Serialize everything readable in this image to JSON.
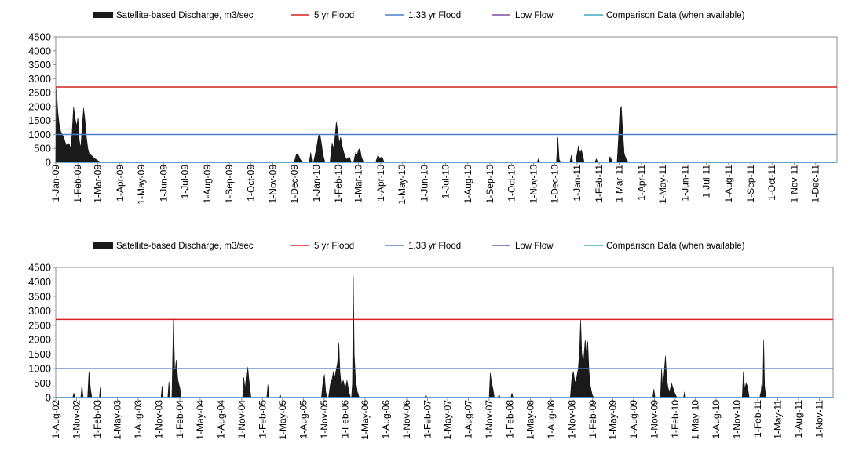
{
  "chart_data": [
    {
      "type": "area",
      "legend": {
        "placement": "top",
        "entries": [
          {
            "label": "Satellite-based Discharge, m3/sec",
            "color": "#1a1a1a",
            "kind": "area"
          },
          {
            "label": "5 yr Flood",
            "color": "#d42020",
            "kind": "line"
          },
          {
            "label": "1.33 yr Flood",
            "color": "#4a7ec9",
            "kind": "line"
          },
          {
            "label": "Low Flow",
            "color": "#7a4f9e",
            "kind": "line"
          },
          {
            "label": "Comparison Data (when available)",
            "color": "#3fa9c9",
            "kind": "line"
          }
        ]
      },
      "y_ticks": [
        "0",
        "500",
        "1000",
        "1500",
        "2000",
        "2500",
        "3000",
        "3500",
        "4000",
        "4500"
      ],
      "ylim": [
        0,
        4500
      ],
      "x_start": "2009-01-01",
      "x_end": "2011-12-31",
      "x_ticks": [
        "1-Jan-09",
        "1-Feb-09",
        "1-Mar-09",
        "1-Apr-09",
        "1-May-09",
        "1-Jun-09",
        "1-Jul-09",
        "1-Aug-09",
        "1-Sep-09",
        "1-Oct-09",
        "1-Nov-09",
        "1-Dec-09",
        "1-Jan-10",
        "1-Feb-10",
        "1-Mar-10",
        "1-Apr-10",
        "1-May-10",
        "1-Jun-10",
        "1-Jul-10",
        "1-Aug-10",
        "1-Sep-10",
        "1-Oct-10",
        "1-Nov-10",
        "1-Dec-10",
        "1-Jan-11",
        "1-Feb-11",
        "1-Mar-11",
        "1-Apr-11",
        "1-May-11",
        "1-Jun-11",
        "1-Jul-11",
        "1-Aug-11",
        "1-Sep-11",
        "1-Oct-11",
        "1-Nov-11",
        "1-Dec-11"
      ],
      "flood_5yr": 2700,
      "flood_133yr": 1000,
      "low_flow": 0,
      "comparison": 0,
      "discharge": [
        [
          "2009-01-01",
          0
        ],
        [
          "2009-01-02",
          2650
        ],
        [
          "2009-01-04",
          1800
        ],
        [
          "2009-01-06",
          1350
        ],
        [
          "2009-01-08",
          1100
        ],
        [
          "2009-01-10",
          1000
        ],
        [
          "2009-01-12",
          900
        ],
        [
          "2009-01-14",
          750
        ],
        [
          "2009-01-16",
          600
        ],
        [
          "2009-01-18",
          700
        ],
        [
          "2009-01-20",
          650
        ],
        [
          "2009-01-22",
          500
        ],
        [
          "2009-01-24",
          1100
        ],
        [
          "2009-01-26",
          2000
        ],
        [
          "2009-01-28",
          1600
        ],
        [
          "2009-01-30",
          1300
        ],
        [
          "2009-02-01",
          1600
        ],
        [
          "2009-02-03",
          800
        ],
        [
          "2009-02-05",
          500
        ],
        [
          "2009-02-07",
          1300
        ],
        [
          "2009-02-09",
          1950
        ],
        [
          "2009-02-11",
          1500
        ],
        [
          "2009-02-13",
          900
        ],
        [
          "2009-02-15",
          500
        ],
        [
          "2009-02-17",
          300
        ],
        [
          "2009-02-20",
          250
        ],
        [
          "2009-02-24",
          150
        ],
        [
          "2009-03-01",
          60
        ],
        [
          "2009-03-05",
          0
        ],
        [
          "2009-12-01",
          0
        ],
        [
          "2009-12-04",
          300
        ],
        [
          "2009-12-07",
          250
        ],
        [
          "2009-12-10",
          80
        ],
        [
          "2009-12-14",
          0
        ],
        [
          "2009-12-22",
          0
        ],
        [
          "2009-12-24",
          350
        ],
        [
          "2009-12-26",
          0
        ],
        [
          "2009-12-28",
          0
        ],
        [
          "2010-01-01",
          500
        ],
        [
          "2010-01-04",
          950
        ],
        [
          "2010-01-06",
          1000
        ],
        [
          "2010-01-08",
          700
        ],
        [
          "2010-01-10",
          300
        ],
        [
          "2010-01-13",
          0
        ],
        [
          "2010-01-20",
          0
        ],
        [
          "2010-01-23",
          700
        ],
        [
          "2010-01-25",
          500
        ],
        [
          "2010-01-27",
          900
        ],
        [
          "2010-01-29",
          1450
        ],
        [
          "2010-01-31",
          1100
        ],
        [
          "2010-02-02",
          700
        ],
        [
          "2010-02-04",
          900
        ],
        [
          "2010-02-06",
          600
        ],
        [
          "2010-02-09",
          300
        ],
        [
          "2010-02-12",
          100
        ],
        [
          "2010-02-16",
          200
        ],
        [
          "2010-02-19",
          0
        ],
        [
          "2010-02-22",
          0
        ],
        [
          "2010-02-25",
          350
        ],
        [
          "2010-02-27",
          250
        ],
        [
          "2010-03-01",
          450
        ],
        [
          "2010-03-03",
          500
        ],
        [
          "2010-03-05",
          200
        ],
        [
          "2010-03-08",
          0
        ],
        [
          "2010-03-25",
          0
        ],
        [
          "2010-03-28",
          250
        ],
        [
          "2010-03-31",
          150
        ],
        [
          "2010-04-03",
          200
        ],
        [
          "2010-04-06",
          0
        ],
        [
          "2010-11-06",
          0
        ],
        [
          "2010-11-08",
          120
        ],
        [
          "2010-11-10",
          0
        ],
        [
          "2010-12-03",
          0
        ],
        [
          "2010-12-05",
          900
        ],
        [
          "2010-12-07",
          100
        ],
        [
          "2010-12-09",
          0
        ],
        [
          "2010-12-22",
          0
        ],
        [
          "2010-12-24",
          250
        ],
        [
          "2010-12-26",
          0
        ],
        [
          "2010-12-30",
          0
        ],
        [
          "2011-01-01",
          300
        ],
        [
          "2011-01-03",
          600
        ],
        [
          "2011-01-05",
          350
        ],
        [
          "2011-01-07",
          450
        ],
        [
          "2011-01-09",
          250
        ],
        [
          "2011-01-11",
          0
        ],
        [
          "2011-01-26",
          0
        ],
        [
          "2011-01-28",
          120
        ],
        [
          "2011-01-30",
          0
        ],
        [
          "2011-02-14",
          0
        ],
        [
          "2011-02-16",
          200
        ],
        [
          "2011-02-18",
          100
        ],
        [
          "2011-02-20",
          0
        ],
        [
          "2011-02-26",
          0
        ],
        [
          "2011-02-28",
          900
        ],
        [
          "2011-03-02",
          1900
        ],
        [
          "2011-03-04",
          2000
        ],
        [
          "2011-03-06",
          1100
        ],
        [
          "2011-03-08",
          300
        ],
        [
          "2011-03-11",
          100
        ],
        [
          "2011-03-14",
          0
        ],
        [
          "2011-12-31",
          0
        ]
      ]
    },
    {
      "type": "area",
      "legend": {
        "placement": "top",
        "entries": [
          {
            "label": "Satellite-based Discharge, m3/sec",
            "color": "#1a1a1a",
            "kind": "area"
          },
          {
            "label": "5 yr Flood",
            "color": "#d42020",
            "kind": "line"
          },
          {
            "label": "1.33 yr Flood",
            "color": "#4a7ec9",
            "kind": "line"
          },
          {
            "label": "Low Flow",
            "color": "#7a4f9e",
            "kind": "line"
          },
          {
            "label": "Comparison Data (when available)",
            "color": "#3fa9c9",
            "kind": "line"
          }
        ]
      },
      "y_ticks": [
        "0",
        "500",
        "1000",
        "1500",
        "2000",
        "2500",
        "3000",
        "3500",
        "4000",
        "4500"
      ],
      "ylim": [
        0,
        4500
      ],
      "x_start": "2002-08-01",
      "x_end": "2012-01-01",
      "x_ticks": [
        "1-Aug-02",
        "1-Nov-02",
        "1-Feb-03",
        "1-May-03",
        "1-Aug-03",
        "1-Nov-03",
        "1-Feb-04",
        "1-May-04",
        "1-Aug-04",
        "1-Nov-04",
        "1-Feb-05",
        "1-May-05",
        "1-Aug-05",
        "1-Nov-05",
        "1-Feb-06",
        "1-May-06",
        "1-Aug-06",
        "1-Nov-06",
        "1-Feb-07",
        "1-May-07",
        "1-Aug-07",
        "1-Nov-07",
        "1-Feb-08",
        "1-May-08",
        "1-Aug-08",
        "1-Nov-08",
        "1-Feb-09",
        "1-May-09",
        "1-Aug-09",
        "1-Nov-09",
        "1-Feb-10",
        "1-May-10",
        "1-Aug-10",
        "1-Nov-10",
        "1-Feb-11",
        "1-May-11",
        "1-Aug-11",
        "1-Nov-11"
      ],
      "flood_5yr": 2700,
      "flood_133yr": 1000,
      "low_flow": 0,
      "comparison": 0,
      "discharge": [
        [
          "2002-10-15",
          0
        ],
        [
          "2002-10-20",
          150
        ],
        [
          "2002-10-25",
          0
        ],
        [
          "2002-11-20",
          0
        ],
        [
          "2002-11-25",
          450
        ],
        [
          "2002-11-30",
          0
        ],
        [
          "2002-12-20",
          0
        ],
        [
          "2002-12-26",
          900
        ],
        [
          "2003-01-02",
          300
        ],
        [
          "2003-01-08",
          0
        ],
        [
          "2003-02-10",
          0
        ],
        [
          "2003-02-14",
          350
        ],
        [
          "2003-02-18",
          0
        ],
        [
          "2003-11-10",
          0
        ],
        [
          "2003-11-15",
          400
        ],
        [
          "2003-11-20",
          0
        ],
        [
          "2003-12-10",
          0
        ],
        [
          "2003-12-15",
          550
        ],
        [
          "2003-12-20",
          0
        ],
        [
          "2003-12-28",
          0
        ],
        [
          "2004-01-04",
          2750
        ],
        [
          "2004-01-10",
          800
        ],
        [
          "2004-01-16",
          1300
        ],
        [
          "2004-01-24",
          600
        ],
        [
          "2004-02-02",
          300
        ],
        [
          "2004-02-08",
          0
        ],
        [
          "2004-11-05",
          0
        ],
        [
          "2004-11-10",
          700
        ],
        [
          "2004-11-16",
          300
        ],
        [
          "2004-11-22",
          850
        ],
        [
          "2004-11-28",
          1050
        ],
        [
          "2004-12-06",
          400
        ],
        [
          "2004-12-12",
          0
        ],
        [
          "2005-02-20",
          0
        ],
        [
          "2005-02-25",
          450
        ],
        [
          "2005-03-02",
          0
        ],
        [
          "2005-04-15",
          0
        ],
        [
          "2005-04-20",
          100
        ],
        [
          "2005-04-25",
          0
        ],
        [
          "2005-10-20",
          0
        ],
        [
          "2005-10-26",
          500
        ],
        [
          "2005-11-02",
          800
        ],
        [
          "2005-11-08",
          200
        ],
        [
          "2005-11-14",
          0
        ],
        [
          "2005-11-20",
          0
        ],
        [
          "2005-11-28",
          450
        ],
        [
          "2005-12-06",
          650
        ],
        [
          "2005-12-12",
          900
        ],
        [
          "2005-12-18",
          700
        ],
        [
          "2005-12-24",
          950
        ],
        [
          "2005-12-30",
          1200
        ],
        [
          "2006-01-05",
          1900
        ],
        [
          "2006-01-10",
          900
        ],
        [
          "2006-01-16",
          400
        ],
        [
          "2006-01-24",
          600
        ],
        [
          "2006-02-02",
          300
        ],
        [
          "2006-02-10",
          600
        ],
        [
          "2006-02-18",
          200
        ],
        [
          "2006-02-26",
          0
        ],
        [
          "2006-03-02",
          0
        ],
        [
          "2006-03-06",
          500
        ],
        [
          "2006-03-10",
          4200
        ],
        [
          "2006-03-14",
          1500
        ],
        [
          "2006-03-20",
          600
        ],
        [
          "2006-03-28",
          200
        ],
        [
          "2006-04-05",
          0
        ],
        [
          "2007-01-20",
          0
        ],
        [
          "2007-01-25",
          100
        ],
        [
          "2007-01-30",
          0
        ],
        [
          "2007-11-01",
          0
        ],
        [
          "2007-11-06",
          850
        ],
        [
          "2007-11-12",
          500
        ],
        [
          "2007-11-18",
          300
        ],
        [
          "2007-11-24",
          0
        ],
        [
          "2007-12-10",
          0
        ],
        [
          "2007-12-15",
          100
        ],
        [
          "2007-12-20",
          0
        ],
        [
          "2008-02-05",
          0
        ],
        [
          "2008-02-10",
          150
        ],
        [
          "2008-02-15",
          0
        ],
        [
          "2008-10-25",
          0
        ],
        [
          "2008-11-01",
          700
        ],
        [
          "2008-11-08",
          900
        ],
        [
          "2008-11-15",
          500
        ],
        [
          "2008-11-22",
          700
        ],
        [
          "2008-11-29",
          1000
        ],
        [
          "2008-12-05",
          1600
        ],
        [
          "2008-12-10",
          2700
        ],
        [
          "2008-12-15",
          1500
        ],
        [
          "2008-12-22",
          1200
        ],
        [
          "2008-12-30",
          2000
        ],
        [
          "2009-01-05",
          1500
        ],
        [
          "2009-01-10",
          1950
        ],
        [
          "2009-01-16",
          900
        ],
        [
          "2009-01-22",
          400
        ],
        [
          "2009-01-30",
          100
        ],
        [
          "2009-02-06",
          0
        ],
        [
          "2009-10-25",
          0
        ],
        [
          "2009-10-30",
          300
        ],
        [
          "2009-11-04",
          0
        ],
        [
          "2009-11-28",
          0
        ],
        [
          "2009-12-03",
          1000
        ],
        [
          "2009-12-08",
          300
        ],
        [
          "2009-12-14",
          800
        ],
        [
          "2009-12-20",
          1450
        ],
        [
          "2009-12-26",
          600
        ],
        [
          "2010-01-02",
          300
        ],
        [
          "2010-01-08",
          200
        ],
        [
          "2010-01-16",
          500
        ],
        [
          "2010-01-24",
          300
        ],
        [
          "2010-02-02",
          100
        ],
        [
          "2010-02-10",
          0
        ],
        [
          "2010-03-10",
          0
        ],
        [
          "2010-03-15",
          200
        ],
        [
          "2010-03-20",
          0
        ],
        [
          "2010-11-25",
          0
        ],
        [
          "2010-11-30",
          900
        ],
        [
          "2010-12-06",
          300
        ],
        [
          "2010-12-12",
          500
        ],
        [
          "2010-12-18",
          400
        ],
        [
          "2010-12-26",
          0
        ],
        [
          "2011-02-10",
          0
        ],
        [
          "2011-02-16",
          200
        ],
        [
          "2011-02-20",
          500
        ],
        [
          "2011-02-24",
          300
        ],
        [
          "2011-02-28",
          2000
        ],
        [
          "2011-03-04",
          400
        ],
        [
          "2011-03-10",
          0
        ]
      ]
    }
  ]
}
